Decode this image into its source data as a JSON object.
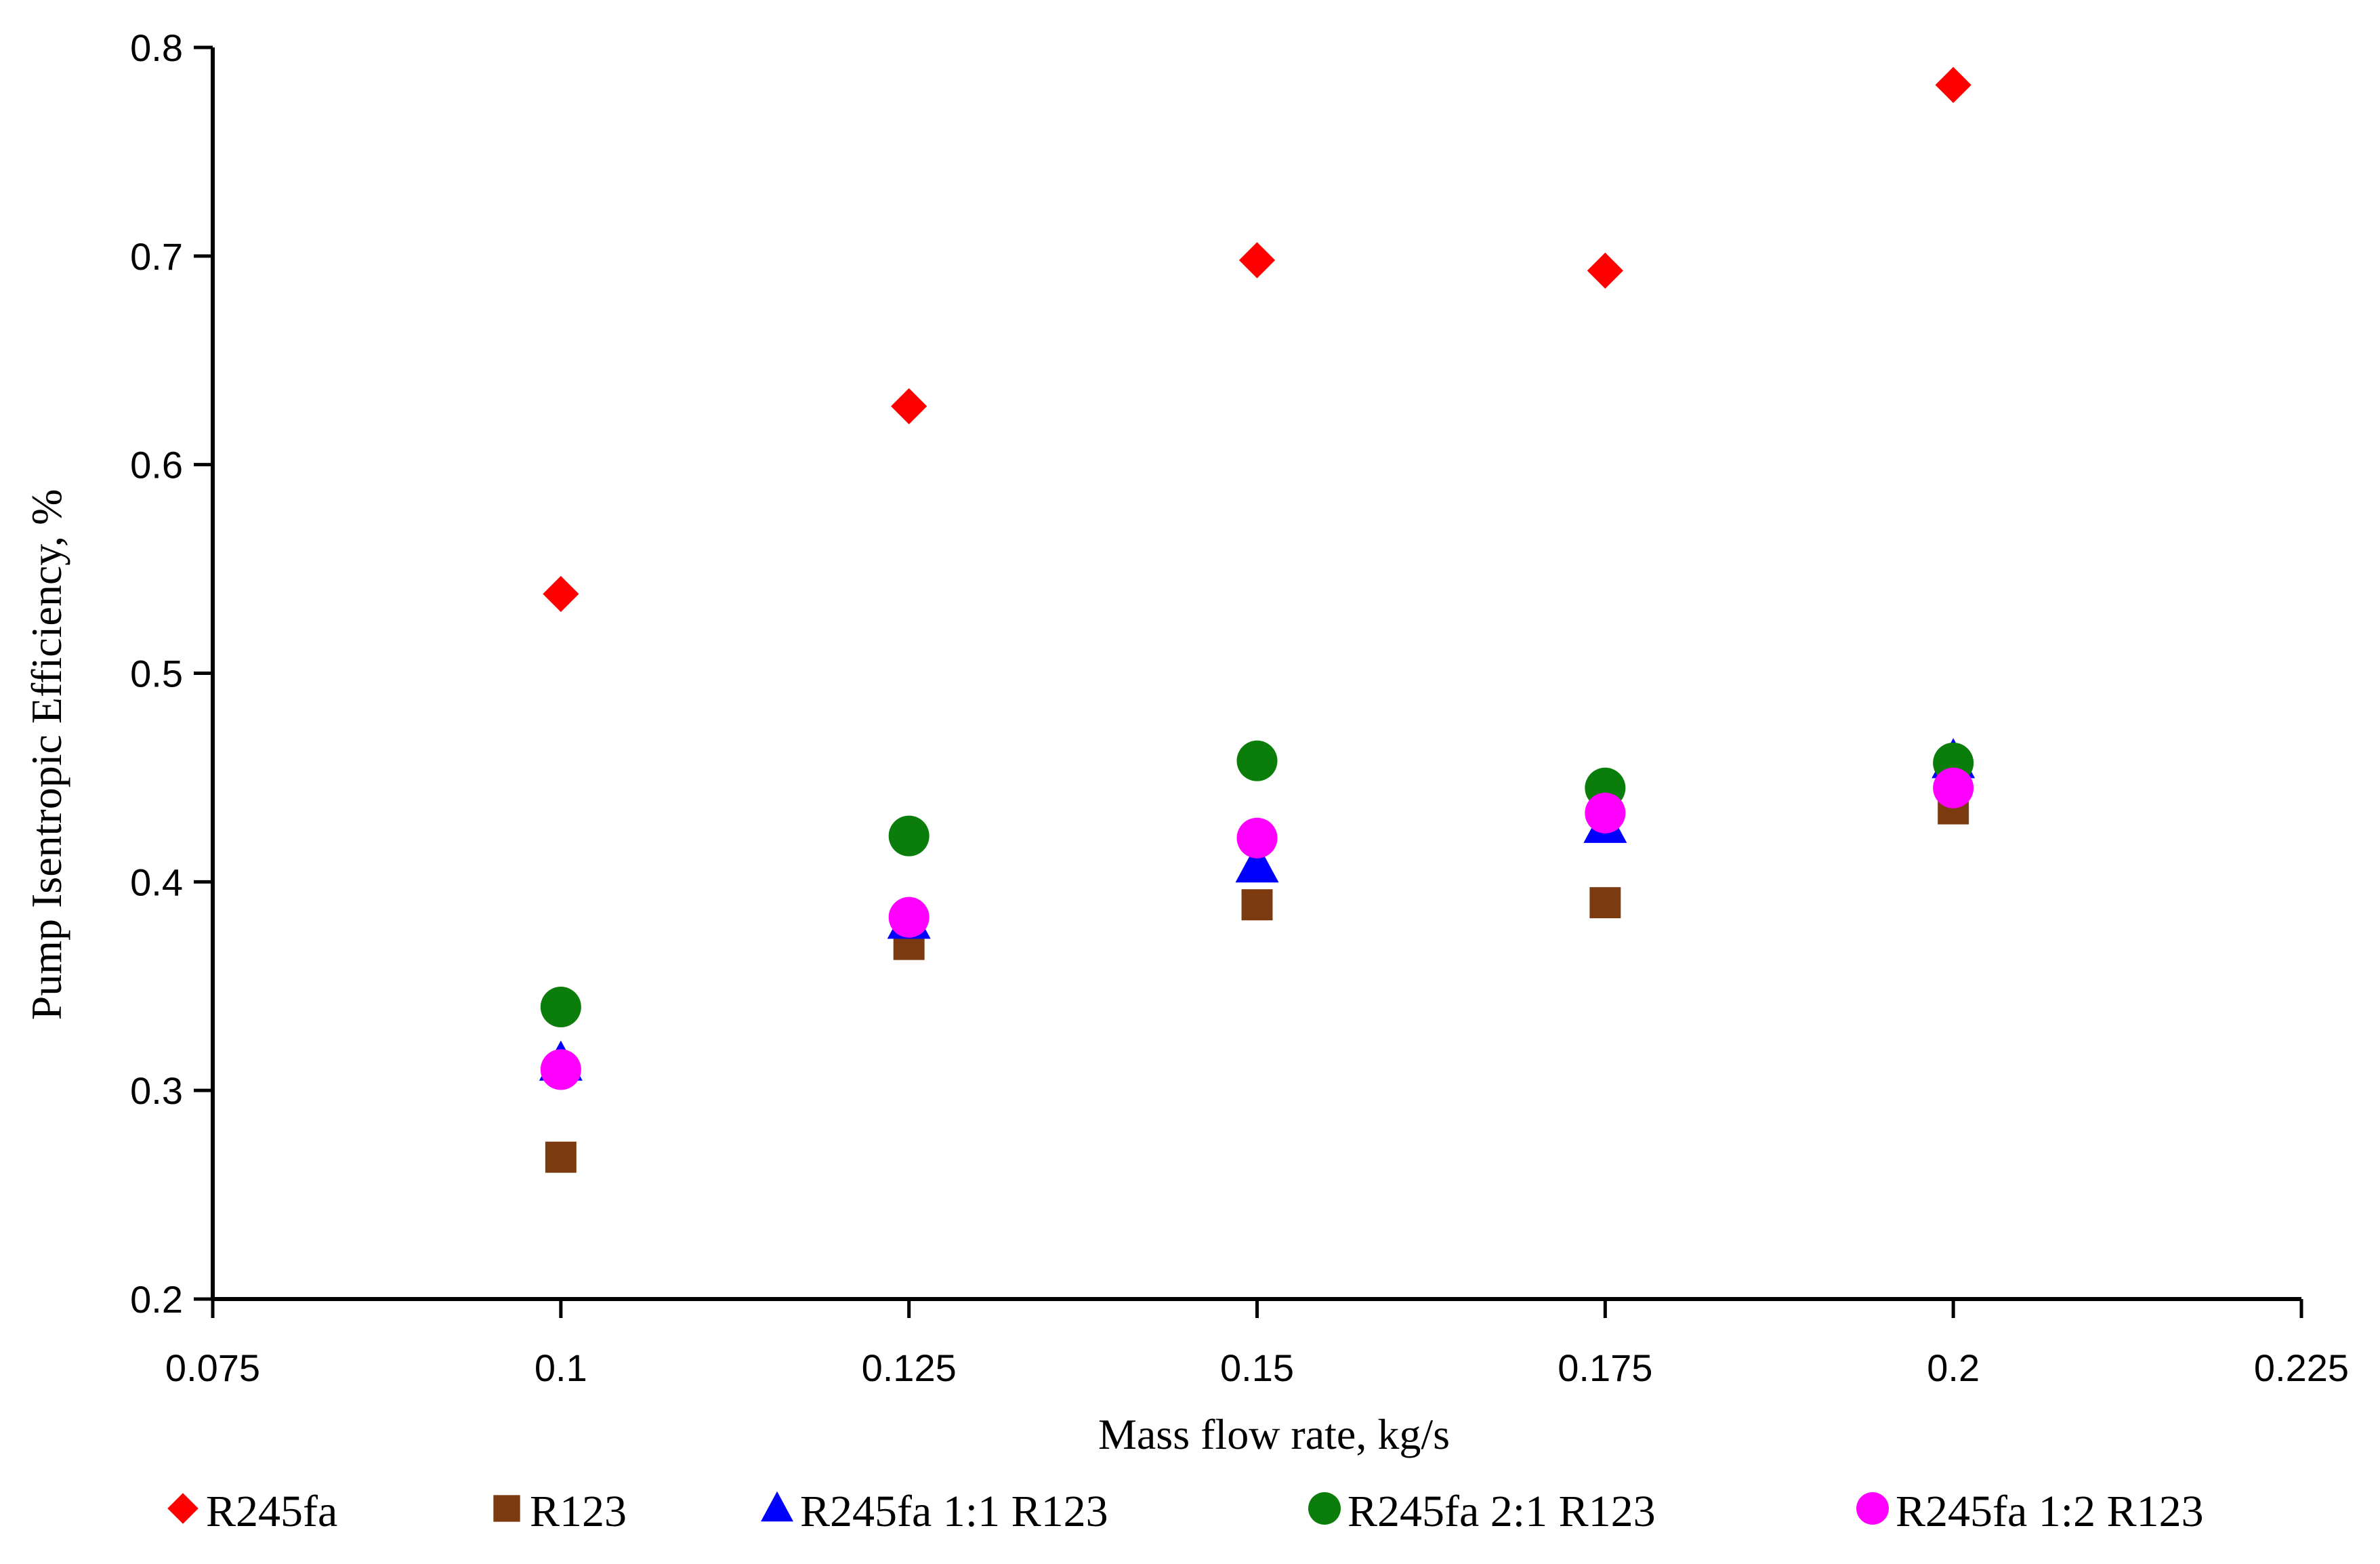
{
  "chart_data": {
    "type": "scatter",
    "title": "",
    "xlabel": "Mass flow rate, kg/s",
    "ylabel": "Pump Isentropic Efficiency, %",
    "xlim": [
      0.075,
      0.225
    ],
    "ylim": [
      0.2,
      0.8
    ],
    "x_ticks": [
      "0.075",
      "0.1",
      "0.125",
      "0.15",
      "0.175",
      "0.2",
      "0.225"
    ],
    "y_ticks": [
      "0.2",
      "0.3",
      "0.4",
      "0.5",
      "0.6",
      "0.7",
      "0.8"
    ],
    "grid": false,
    "legend_position": "bottom",
    "x": [
      0.1,
      0.125,
      0.15,
      0.175,
      0.2
    ],
    "series": [
      {
        "name": "R245fa",
        "marker": "diamond",
        "color": "#ff0000",
        "values": [
          0.538,
          0.628,
          0.698,
          0.693,
          0.782
        ]
      },
      {
        "name": "R123",
        "marker": "square",
        "color": "#7b3a10",
        "values": [
          0.268,
          0.37,
          0.389,
          0.39,
          0.435
        ]
      },
      {
        "name": "R245fa 1:1 R123",
        "marker": "triangle",
        "color": "#0000ff",
        "values": [
          0.313,
          0.381,
          0.408,
          0.427,
          0.458
        ]
      },
      {
        "name": "R245fa 2:1 R123",
        "marker": "circle",
        "color": "#0a7d0a",
        "values": [
          0.34,
          0.422,
          0.458,
          0.445,
          0.457
        ]
      },
      {
        "name": "R245fa 1:2 R123",
        "marker": "circle",
        "color": "#ff00ff",
        "values": [
          0.31,
          0.383,
          0.421,
          0.433,
          0.445
        ]
      }
    ]
  }
}
